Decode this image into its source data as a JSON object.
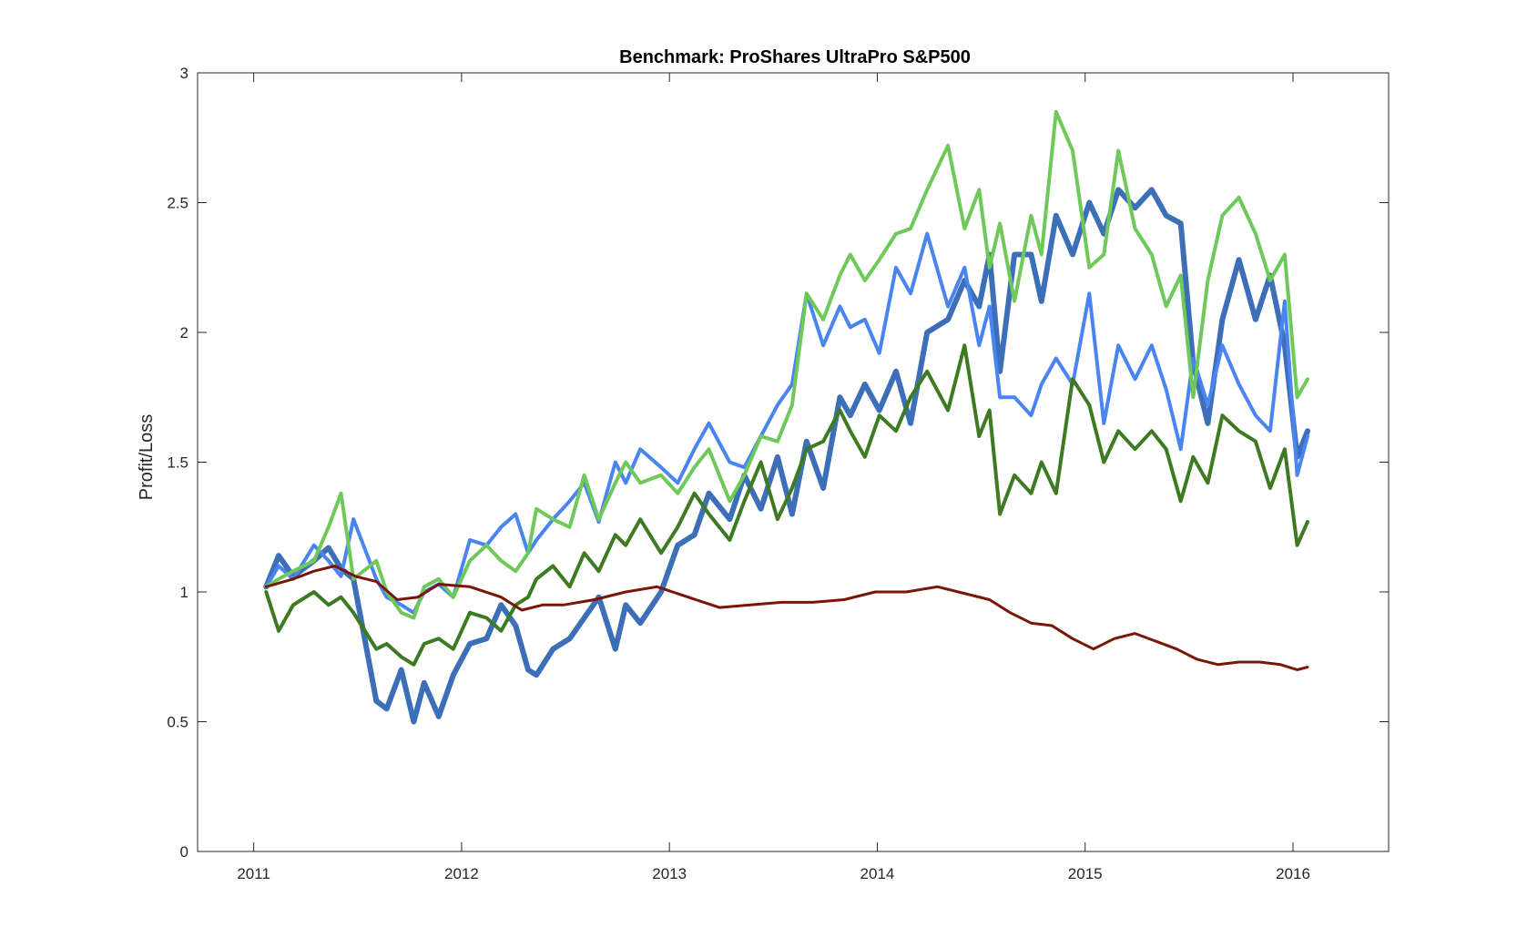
{
  "chart_data": {
    "type": "line",
    "title": "Benchmark: ProShares UltraPro S&P500",
    "xlabel": "",
    "ylabel": "Profit/Loss",
    "xlim": [
      2010.99,
      2016.72
    ],
    "ylim": [
      0,
      3
    ],
    "xticks": [
      {
        "value": 2011.26,
        "label": "2011"
      },
      {
        "value": 2012.26,
        "label": "2012"
      },
      {
        "value": 2013.26,
        "label": "2013"
      },
      {
        "value": 2014.26,
        "label": "2014"
      },
      {
        "value": 2015.26,
        "label": "2015"
      },
      {
        "value": 2016.26,
        "label": "2016"
      }
    ],
    "yticks": [
      0,
      0.5,
      1,
      1.5,
      2,
      2.5,
      3
    ],
    "grid": false,
    "legend": "none",
    "series": [
      {
        "color": "#ff0000",
        "color_hex": "#3d6fb8",
        "stroke_width": 6,
        "x": [
          2011.32,
          2011.38,
          2011.45,
          2011.55,
          2011.62,
          2011.68,
          2011.74,
          2011.85,
          2011.9,
          2011.97,
          2012.03,
          2012.08,
          2012.15,
          2012.22,
          2012.3,
          2012.38,
          2012.45,
          2012.52,
          2012.58,
          2012.62,
          2012.7,
          2012.78,
          2012.85,
          2012.92,
          2013.0,
          2013.05,
          2013.12,
          2013.22,
          2013.3,
          2013.38,
          2013.45,
          2013.55,
          2013.62,
          2013.7,
          2013.78,
          2013.85,
          2013.92,
          2014.0,
          2014.08,
          2014.13,
          2014.2,
          2014.27,
          2014.35,
          2014.42,
          2014.5,
          2014.6,
          2014.68,
          2014.75,
          2014.8,
          2014.85,
          2014.92,
          2015.0,
          2015.05,
          2015.12,
          2015.2,
          2015.28,
          2015.35,
          2015.42,
          2015.5,
          2015.58,
          2015.65,
          2015.72,
          2015.78,
          2015.85,
          2015.92,
          2016.0,
          2016.08,
          2016.15,
          2016.22,
          2016.28,
          2016.33
        ],
        "y": [
          1.02,
          1.14,
          1.06,
          1.12,
          1.17,
          1.09,
          1.05,
          0.58,
          0.55,
          0.7,
          0.5,
          0.65,
          0.52,
          0.68,
          0.8,
          0.82,
          0.95,
          0.87,
          0.7,
          0.68,
          0.78,
          0.82,
          0.9,
          0.98,
          0.78,
          0.95,
          0.88,
          1.0,
          1.18,
          1.22,
          1.38,
          1.28,
          1.45,
          1.32,
          1.52,
          1.3,
          1.58,
          1.4,
          1.75,
          1.68,
          1.8,
          1.7,
          1.85,
          1.65,
          2.0,
          2.05,
          2.2,
          2.1,
          2.3,
          1.85,
          2.3,
          2.3,
          2.12,
          2.45,
          2.3,
          2.5,
          2.38,
          2.55,
          2.48,
          2.55,
          2.45,
          2.42,
          1.88,
          1.65,
          2.05,
          2.28,
          2.05,
          2.22,
          1.95,
          1.52,
          1.62
        ]
      },
      {
        "color_hex": "#4a84f0",
        "stroke_width": 4,
        "x": [
          2011.32,
          2011.38,
          2011.45,
          2011.55,
          2011.62,
          2011.68,
          2011.74,
          2011.85,
          2011.9,
          2011.97,
          2012.03,
          2012.08,
          2012.15,
          2012.22,
          2012.3,
          2012.38,
          2012.45,
          2012.52,
          2012.58,
          2012.62,
          2012.7,
          2012.78,
          2012.85,
          2012.92,
          2013.0,
          2013.05,
          2013.12,
          2013.22,
          2013.3,
          2013.38,
          2013.45,
          2013.55,
          2013.62,
          2013.7,
          2013.78,
          2013.85,
          2013.92,
          2014.0,
          2014.08,
          2014.13,
          2014.2,
          2014.27,
          2014.35,
          2014.42,
          2014.5,
          2014.6,
          2014.68,
          2014.75,
          2014.8,
          2014.85,
          2014.92,
          2015.0,
          2015.05,
          2015.12,
          2015.2,
          2015.28,
          2015.35,
          2015.42,
          2015.5,
          2015.58,
          2015.65,
          2015.72,
          2015.78,
          2015.85,
          2015.92,
          2016.0,
          2016.08,
          2016.15,
          2016.22,
          2016.28,
          2016.33
        ],
        "y": [
          1.02,
          1.1,
          1.05,
          1.18,
          1.12,
          1.06,
          1.28,
          1.05,
          0.98,
          0.95,
          0.92,
          1.0,
          1.03,
          0.98,
          1.2,
          1.18,
          1.25,
          1.3,
          1.15,
          1.2,
          1.28,
          1.35,
          1.42,
          1.27,
          1.5,
          1.42,
          1.55,
          1.48,
          1.42,
          1.55,
          1.65,
          1.5,
          1.48,
          1.6,
          1.72,
          1.8,
          2.15,
          1.95,
          2.1,
          2.02,
          2.05,
          1.92,
          2.25,
          2.15,
          2.38,
          2.1,
          2.25,
          1.95,
          2.1,
          1.75,
          1.75,
          1.68,
          1.8,
          1.9,
          1.8,
          2.15,
          1.65,
          1.95,
          1.82,
          1.95,
          1.78,
          1.55,
          1.9,
          1.72,
          1.95,
          1.8,
          1.68,
          1.62,
          2.12,
          1.45,
          1.6
        ]
      },
      {
        "color_hex": "#6fc95a",
        "stroke_width": 4,
        "x": [
          2011.32,
          2011.38,
          2011.45,
          2011.55,
          2011.62,
          2011.68,
          2011.74,
          2011.85,
          2011.9,
          2011.97,
          2012.03,
          2012.08,
          2012.15,
          2012.22,
          2012.3,
          2012.38,
          2012.45,
          2012.52,
          2012.58,
          2012.62,
          2012.7,
          2012.78,
          2012.85,
          2012.92,
          2013.0,
          2013.05,
          2013.12,
          2013.22,
          2013.3,
          2013.38,
          2013.45,
          2013.55,
          2013.62,
          2013.7,
          2013.78,
          2013.85,
          2013.92,
          2014.0,
          2014.08,
          2014.13,
          2014.2,
          2014.27,
          2014.35,
          2014.42,
          2014.5,
          2014.6,
          2014.68,
          2014.75,
          2014.8,
          2014.85,
          2014.92,
          2015.0,
          2015.05,
          2015.12,
          2015.2,
          2015.28,
          2015.35,
          2015.42,
          2015.5,
          2015.58,
          2015.65,
          2015.72,
          2015.78,
          2015.85,
          2015.92,
          2016.0,
          2016.08,
          2016.15,
          2016.22,
          2016.28,
          2016.33
        ],
        "y": [
          1.02,
          1.05,
          1.08,
          1.12,
          1.25,
          1.38,
          1.05,
          1.12,
          1.0,
          0.92,
          0.9,
          1.02,
          1.05,
          0.98,
          1.12,
          1.18,
          1.12,
          1.08,
          1.15,
          1.32,
          1.28,
          1.25,
          1.45,
          1.28,
          1.42,
          1.5,
          1.42,
          1.45,
          1.38,
          1.48,
          1.55,
          1.35,
          1.45,
          1.6,
          1.58,
          1.72,
          2.15,
          2.05,
          2.22,
          2.3,
          2.2,
          2.28,
          2.38,
          2.4,
          2.55,
          2.72,
          2.4,
          2.55,
          2.25,
          2.42,
          2.12,
          2.45,
          2.3,
          2.85,
          2.7,
          2.25,
          2.3,
          2.7,
          2.4,
          2.3,
          2.1,
          2.22,
          1.75,
          2.2,
          2.45,
          2.52,
          2.38,
          2.2,
          2.3,
          1.75,
          1.82
        ]
      },
      {
        "color_hex": "#3d7a22",
        "stroke_width": 4,
        "x": [
          2011.32,
          2011.38,
          2011.45,
          2011.55,
          2011.62,
          2011.68,
          2011.74,
          2011.85,
          2011.9,
          2011.97,
          2012.03,
          2012.08,
          2012.15,
          2012.22,
          2012.3,
          2012.38,
          2012.45,
          2012.52,
          2012.58,
          2012.62,
          2012.7,
          2012.78,
          2012.85,
          2012.92,
          2013.0,
          2013.05,
          2013.12,
          2013.22,
          2013.3,
          2013.38,
          2013.45,
          2013.55,
          2013.62,
          2013.7,
          2013.78,
          2013.85,
          2013.92,
          2014.0,
          2014.08,
          2014.13,
          2014.2,
          2014.27,
          2014.35,
          2014.42,
          2014.5,
          2014.6,
          2014.68,
          2014.75,
          2014.8,
          2014.85,
          2014.92,
          2015.0,
          2015.05,
          2015.12,
          2015.2,
          2015.28,
          2015.35,
          2015.42,
          2015.5,
          2015.58,
          2015.65,
          2015.72,
          2015.78,
          2015.85,
          2015.92,
          2016.0,
          2016.08,
          2016.15,
          2016.22,
          2016.28,
          2016.33
        ],
        "y": [
          1.0,
          0.85,
          0.95,
          1.0,
          0.95,
          0.98,
          0.92,
          0.78,
          0.8,
          0.75,
          0.72,
          0.8,
          0.82,
          0.78,
          0.92,
          0.9,
          0.85,
          0.95,
          0.98,
          1.05,
          1.1,
          1.02,
          1.15,
          1.08,
          1.22,
          1.18,
          1.28,
          1.15,
          1.25,
          1.38,
          1.3,
          1.2,
          1.35,
          1.5,
          1.28,
          1.4,
          1.55,
          1.58,
          1.7,
          1.62,
          1.52,
          1.68,
          1.62,
          1.75,
          1.85,
          1.7,
          1.95,
          1.6,
          1.7,
          1.3,
          1.45,
          1.38,
          1.5,
          1.38,
          1.82,
          1.72,
          1.5,
          1.62,
          1.55,
          1.62,
          1.55,
          1.35,
          1.52,
          1.42,
          1.68,
          1.62,
          1.58,
          1.4,
          1.55,
          1.18,
          1.27
        ]
      },
      {
        "color_hex": "#7a1608",
        "stroke_width": 3,
        "x": [
          2011.32,
          2011.45,
          2011.55,
          2011.65,
          2011.75,
          2011.85,
          2011.95,
          2012.05,
          2012.15,
          2012.3,
          2012.45,
          2012.55,
          2012.65,
          2012.75,
          2012.9,
          2013.05,
          2013.2,
          2013.35,
          2013.5,
          2013.65,
          2013.8,
          2013.95,
          2014.1,
          2014.25,
          2014.4,
          2014.55,
          2014.65,
          2014.8,
          2014.9,
          2015.0,
          2015.1,
          2015.2,
          2015.3,
          2015.4,
          2015.5,
          2015.6,
          2015.7,
          2015.8,
          2015.9,
          2016.0,
          2016.1,
          2016.2,
          2016.28,
          2016.33
        ],
        "y": [
          1.02,
          1.05,
          1.08,
          1.1,
          1.06,
          1.04,
          0.97,
          0.98,
          1.03,
          1.02,
          0.98,
          0.93,
          0.95,
          0.95,
          0.97,
          1.0,
          1.02,
          0.98,
          0.94,
          0.95,
          0.96,
          0.96,
          0.97,
          1.0,
          1.0,
          1.02,
          1.0,
          0.97,
          0.92,
          0.88,
          0.87,
          0.82,
          0.78,
          0.82,
          0.84,
          0.81,
          0.78,
          0.74,
          0.72,
          0.73,
          0.73,
          0.72,
          0.7,
          0.71
        ]
      }
    ]
  }
}
